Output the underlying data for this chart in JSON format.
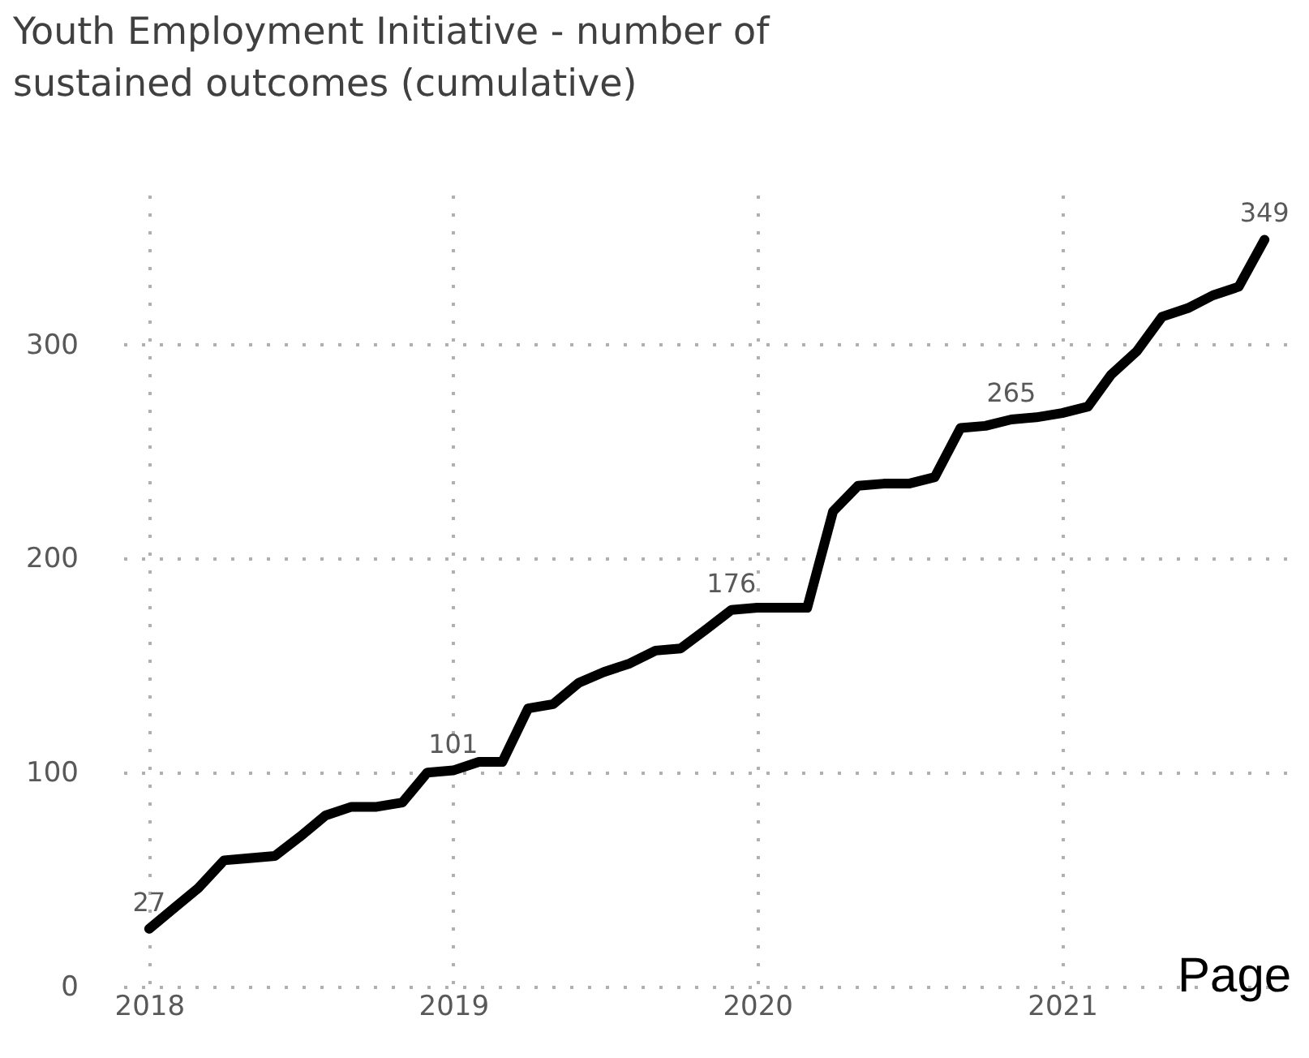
{
  "chart_data": {
    "type": "line",
    "title": "Youth Employment Initiative - number of sustained outcomes (cumulative)",
    "x": [
      "2018-01",
      "2018-02",
      "2018-03",
      "2018-04",
      "2018-05",
      "2018-06",
      "2018-07",
      "2018-08",
      "2018-09",
      "2018-10",
      "2018-11",
      "2018-12",
      "2019-01",
      "2019-02",
      "2019-03",
      "2019-04",
      "2019-05",
      "2019-06",
      "2019-07",
      "2019-08",
      "2019-09",
      "2019-10",
      "2019-11",
      "2019-12",
      "2020-01",
      "2020-02",
      "2020-03",
      "2020-04",
      "2020-05",
      "2020-06",
      "2020-07",
      "2020-08",
      "2020-09",
      "2020-10",
      "2020-11",
      "2020-12",
      "2021-01",
      "2021-02",
      "2021-03",
      "2021-04",
      "2021-05",
      "2021-06",
      "2021-07",
      "2021-08",
      "2021-09"
    ],
    "series": [
      {
        "color": "#000000",
        "values": [
          27,
          37,
          46,
          59,
          60,
          61,
          70,
          80,
          84,
          84,
          86,
          100,
          101,
          105,
          105,
          130,
          132,
          142,
          147,
          151,
          157,
          158,
          167,
          176,
          177,
          177,
          177,
          222,
          234,
          235,
          235,
          238,
          261,
          262,
          265,
          266,
          268,
          271,
          286,
          297,
          313,
          317,
          323,
          327,
          349
        ],
        "value_labels": [
          "27",
          null,
          null,
          null,
          null,
          null,
          null,
          null,
          null,
          null,
          null,
          null,
          "101",
          null,
          null,
          null,
          null,
          null,
          null,
          null,
          null,
          null,
          null,
          "176",
          null,
          null,
          null,
          null,
          null,
          null,
          null,
          null,
          null,
          null,
          "265",
          null,
          null,
          null,
          null,
          null,
          null,
          null,
          null,
          null,
          "349"
        ]
      }
    ],
    "xlim": [
      "2017-12",
      "2021-10"
    ],
    "xticks": [
      "2018",
      "2019",
      "2020",
      "2021"
    ],
    "ylim": [
      0,
      370
    ],
    "yticks": [
      0,
      100,
      200,
      300
    ],
    "grid": true,
    "line_style": "solid",
    "marker": "none",
    "annotations": [
      "Page"
    ]
  }
}
